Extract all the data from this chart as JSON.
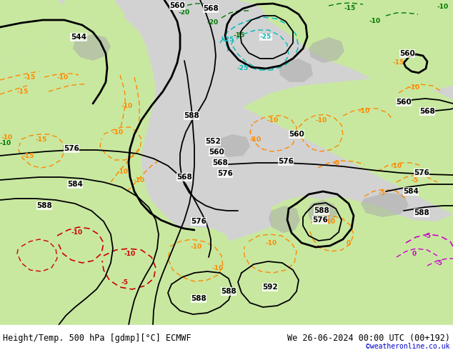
{
  "title_left": "Height/Temp. 500 hPa [gdmp][°C] ECMWF",
  "title_right": "We 26-06-2024 00:00 UTC (00+192)",
  "copyright": "©weatheronline.co.uk",
  "bg_sea": "#d2d2d2",
  "bg_land_green": "#c8e8a0",
  "bg_land_gray": "#aaaaaa",
  "c_black": "#000000",
  "c_orange": "#ff8800",
  "c_cyan": "#00bbbb",
  "c_red": "#cc0000",
  "c_magenta": "#cc00cc",
  "c_green": "#007700",
  "c_blue": "#0000cc",
  "lw_thick": 2.0,
  "lw_thin": 1.3,
  "lw_temp": 1.0,
  "fs_label": 7.5,
  "fs_temp": 6.5,
  "fs_title": 8.5,
  "fs_copy": 7.0
}
